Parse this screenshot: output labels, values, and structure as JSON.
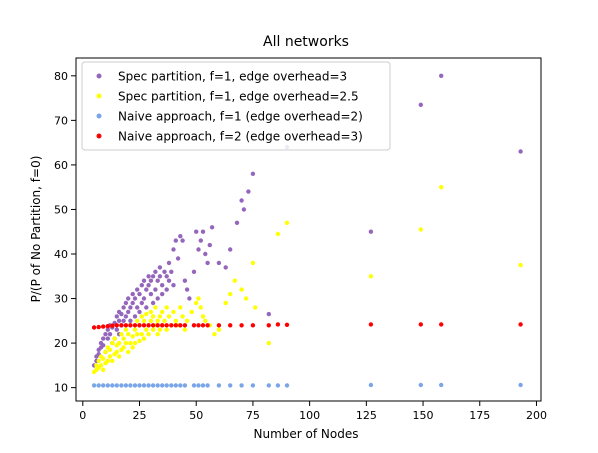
{
  "chart_data": {
    "type": "scatter",
    "title": "All networks",
    "xlabel": "Number of Nodes",
    "ylabel": "P/(P of No Partition, f=0)",
    "xlim": [
      -3,
      202
    ],
    "ylim": [
      7,
      84
    ],
    "xticks": [
      0,
      25,
      50,
      75,
      100,
      125,
      150,
      175,
      200
    ],
    "yticks": [
      10,
      20,
      30,
      40,
      50,
      60,
      70,
      80
    ],
    "grid": false,
    "legend_position": "top-left",
    "series": [
      {
        "name": "Spec partition, f=1, edge overhead=3",
        "color": "#9467bd",
        "points": [
          [
            5,
            15
          ],
          [
            6,
            16
          ],
          [
            6,
            17
          ],
          [
            7,
            17.5
          ],
          [
            7,
            18.5
          ],
          [
            8,
            19
          ],
          [
            8,
            20
          ],
          [
            9,
            19.5
          ],
          [
            9,
            21
          ],
          [
            10,
            18
          ],
          [
            10,
            22
          ],
          [
            11,
            21
          ],
          [
            11,
            23
          ],
          [
            12,
            22
          ],
          [
            12,
            24
          ],
          [
            13,
            20
          ],
          [
            13,
            23.5
          ],
          [
            14,
            21
          ],
          [
            14,
            24.5
          ],
          [
            15,
            23
          ],
          [
            15,
            26
          ],
          [
            16,
            22
          ],
          [
            16,
            25
          ],
          [
            16,
            27
          ],
          [
            17,
            24
          ],
          [
            17,
            26.5
          ],
          [
            18,
            25
          ],
          [
            18,
            28
          ],
          [
            19,
            26
          ],
          [
            19,
            29
          ],
          [
            20,
            27
          ],
          [
            20,
            30
          ],
          [
            21,
            25
          ],
          [
            21,
            28
          ],
          [
            22,
            29
          ],
          [
            22,
            31
          ],
          [
            23,
            26
          ],
          [
            23,
            30
          ],
          [
            24,
            28
          ],
          [
            24,
            32
          ],
          [
            25,
            27
          ],
          [
            25,
            31
          ],
          [
            26,
            29
          ],
          [
            26,
            33
          ],
          [
            27,
            30
          ],
          [
            27,
            34
          ],
          [
            28,
            28
          ],
          [
            28,
            32
          ],
          [
            29,
            33
          ],
          [
            29,
            35
          ],
          [
            30,
            31
          ],
          [
            30,
            34
          ],
          [
            31,
            29
          ],
          [
            31,
            35
          ],
          [
            32,
            32
          ],
          [
            32,
            36
          ],
          [
            33,
            34
          ],
          [
            33,
            30
          ],
          [
            34,
            35
          ],
          [
            34,
            37
          ],
          [
            35,
            33
          ],
          [
            35,
            31
          ],
          [
            36,
            36
          ],
          [
            37,
            35
          ],
          [
            37,
            32
          ],
          [
            38,
            38
          ],
          [
            38,
            34
          ],
          [
            39,
            36
          ],
          [
            40,
            33
          ],
          [
            40,
            41
          ],
          [
            41,
            43
          ],
          [
            42,
            39
          ],
          [
            43,
            44
          ],
          [
            44,
            43
          ],
          [
            45,
            34
          ],
          [
            46,
            32
          ],
          [
            47,
            30
          ],
          [
            49,
            36
          ],
          [
            50,
            45
          ],
          [
            51,
            41
          ],
          [
            52,
            43
          ],
          [
            53,
            45
          ],
          [
            54,
            40
          ],
          [
            55,
            38
          ],
          [
            56,
            42
          ],
          [
            57,
            46
          ],
          [
            60,
            38
          ],
          [
            63,
            37
          ],
          [
            65,
            41
          ],
          [
            68,
            47
          ],
          [
            70,
            52
          ],
          [
            71,
            50
          ],
          [
            73,
            54
          ],
          [
            75,
            58
          ],
          [
            82,
            26.5
          ],
          [
            90,
            64
          ],
          [
            127,
            45
          ],
          [
            149,
            73.5
          ],
          [
            158,
            80
          ],
          [
            193,
            63
          ]
        ]
      },
      {
        "name": "Spec partition, f=1, edge overhead=2.5",
        "color": "#ffff00",
        "points": [
          [
            5,
            13.5
          ],
          [
            6,
            14
          ],
          [
            6,
            15
          ],
          [
            7,
            14.5
          ],
          [
            7,
            16
          ],
          [
            8,
            15
          ],
          [
            8,
            17
          ],
          [
            9,
            14
          ],
          [
            9,
            16.5
          ],
          [
            10,
            15.5
          ],
          [
            10,
            18
          ],
          [
            11,
            16
          ],
          [
            11,
            19
          ],
          [
            12,
            17
          ],
          [
            12,
            18.5
          ],
          [
            13,
            16
          ],
          [
            13,
            20
          ],
          [
            14,
            17.5
          ],
          [
            14,
            21
          ],
          [
            15,
            18
          ],
          [
            15,
            19.5
          ],
          [
            16,
            17
          ],
          [
            16,
            20
          ],
          [
            17,
            18.5
          ],
          [
            17,
            22
          ],
          [
            18,
            19
          ],
          [
            18,
            21
          ],
          [
            19,
            20
          ],
          [
            19,
            23
          ],
          [
            20,
            18
          ],
          [
            20,
            22
          ],
          [
            21,
            20
          ],
          [
            21,
            24
          ],
          [
            22,
            19
          ],
          [
            22,
            21.5
          ],
          [
            23,
            20
          ],
          [
            23,
            23
          ],
          [
            24,
            22
          ],
          [
            24,
            25
          ],
          [
            25,
            20.5
          ],
          [
            25,
            24
          ],
          [
            26,
            22
          ],
          [
            26,
            26
          ],
          [
            27,
            21
          ],
          [
            27,
            25
          ],
          [
            28,
            23
          ],
          [
            28,
            26.5
          ],
          [
            29,
            24
          ],
          [
            29,
            22
          ],
          [
            30,
            25
          ],
          [
            30,
            27
          ],
          [
            31,
            23
          ],
          [
            31,
            26
          ],
          [
            32,
            24
          ],
          [
            32,
            28
          ],
          [
            33,
            22
          ],
          [
            33,
            25
          ],
          [
            34,
            26
          ],
          [
            34,
            23
          ],
          [
            35,
            24
          ],
          [
            35,
            27
          ],
          [
            36,
            25
          ],
          [
            37,
            23
          ],
          [
            37,
            28
          ],
          [
            38,
            26
          ],
          [
            39,
            24
          ],
          [
            40,
            27
          ],
          [
            41,
            25
          ],
          [
            42,
            24
          ],
          [
            43,
            28
          ],
          [
            44,
            26
          ],
          [
            45,
            23
          ],
          [
            46,
            25
          ],
          [
            48,
            27
          ],
          [
            50,
            29
          ],
          [
            51,
            30
          ],
          [
            52,
            28
          ],
          [
            53,
            26
          ],
          [
            54,
            25
          ],
          [
            56,
            24
          ],
          [
            58,
            22
          ],
          [
            60,
            23
          ],
          [
            63,
            29
          ],
          [
            65,
            31
          ],
          [
            67,
            34
          ],
          [
            70,
            32
          ],
          [
            72,
            30
          ],
          [
            75,
            38
          ],
          [
            76,
            28
          ],
          [
            82,
            20
          ],
          [
            86,
            44.5
          ],
          [
            90,
            47
          ],
          [
            127,
            35
          ],
          [
            149,
            45.5
          ],
          [
            158,
            55
          ],
          [
            193,
            37.5
          ]
        ]
      },
      {
        "name": "Naive approach, f=1 (edge overhead=2)",
        "color": "#7aa6e8",
        "points": [
          [
            5,
            10.5
          ],
          [
            7,
            10.5
          ],
          [
            9,
            10.5
          ],
          [
            11,
            10.5
          ],
          [
            13,
            10.5
          ],
          [
            15,
            10.5
          ],
          [
            17,
            10.5
          ],
          [
            19,
            10.5
          ],
          [
            21,
            10.5
          ],
          [
            23,
            10.5
          ],
          [
            25,
            10.5
          ],
          [
            27,
            10.5
          ],
          [
            29,
            10.5
          ],
          [
            31,
            10.5
          ],
          [
            33,
            10.5
          ],
          [
            35,
            10.5
          ],
          [
            37,
            10.5
          ],
          [
            39,
            10.5
          ],
          [
            41,
            10.5
          ],
          [
            43,
            10.5
          ],
          [
            45,
            10.5
          ],
          [
            49,
            10.5
          ],
          [
            51,
            10.5
          ],
          [
            53,
            10.5
          ],
          [
            55,
            10.5
          ],
          [
            60,
            10.5
          ],
          [
            65,
            10.5
          ],
          [
            70,
            10.5
          ],
          [
            75,
            10.5
          ],
          [
            82,
            10.5
          ],
          [
            86,
            10.5
          ],
          [
            90,
            10.5
          ],
          [
            127,
            10.6
          ],
          [
            149,
            10.6
          ],
          [
            158,
            10.6
          ],
          [
            193,
            10.6
          ]
        ]
      },
      {
        "name": "Naive approach, f=2 (edge overhead=3)",
        "color": "#ff0000",
        "points": [
          [
            5,
            23.5
          ],
          [
            7,
            23.6
          ],
          [
            9,
            23.7
          ],
          [
            11,
            23.8
          ],
          [
            13,
            23.9
          ],
          [
            15,
            24
          ],
          [
            17,
            24
          ],
          [
            19,
            24
          ],
          [
            21,
            24
          ],
          [
            23,
            24
          ],
          [
            25,
            24
          ],
          [
            27,
            24
          ],
          [
            29,
            24
          ],
          [
            31,
            24
          ],
          [
            33,
            24
          ],
          [
            35,
            24
          ],
          [
            37,
            24
          ],
          [
            39,
            24
          ],
          [
            41,
            24
          ],
          [
            43,
            24
          ],
          [
            45,
            24
          ],
          [
            49,
            24
          ],
          [
            51,
            24
          ],
          [
            53,
            24
          ],
          [
            55,
            24
          ],
          [
            60,
            24
          ],
          [
            65,
            24
          ],
          [
            70,
            24
          ],
          [
            75,
            24
          ],
          [
            82,
            24
          ],
          [
            86,
            24.2
          ],
          [
            90,
            24.1
          ],
          [
            127,
            24.2
          ],
          [
            149,
            24.2
          ],
          [
            158,
            24.2
          ],
          [
            193,
            24.2
          ]
        ]
      }
    ]
  }
}
